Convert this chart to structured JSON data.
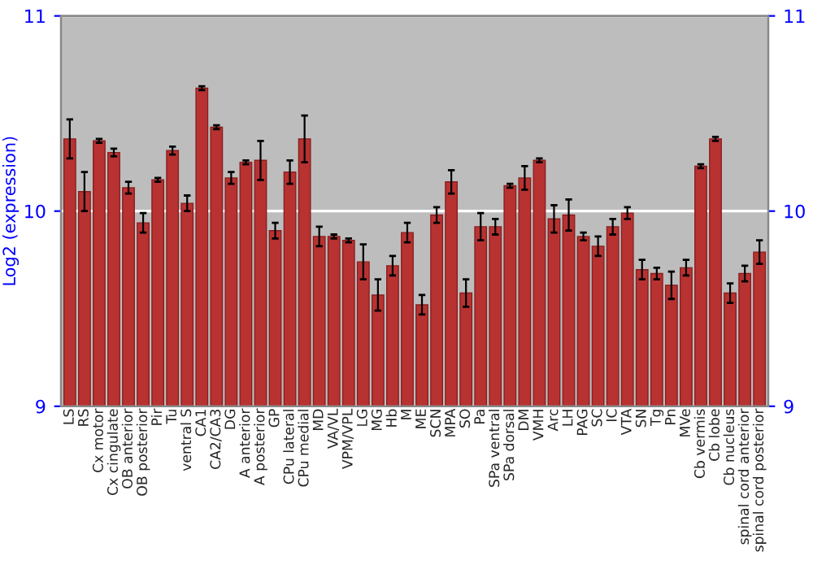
{
  "chart_data": {
    "type": "bar",
    "ylabel": "Log2 (expression)",
    "categories": [
      "LS",
      "RS",
      "Cx motor",
      "Cx cingulate",
      "OB anterior",
      "OB posterior",
      "Pir",
      "Tu",
      "ventral S",
      "CA1",
      "CA2/CA3",
      "DG",
      "A anterior",
      "A posterior",
      "GP",
      "CPu lateral",
      "CPu medial",
      "MD",
      "VA/VL",
      "VPM/VPL",
      "LG",
      "MG",
      "Hb",
      "M",
      "ME",
      "SCN",
      "MPA",
      "SO",
      "Pa",
      "SPa ventral",
      "SPa dorsal",
      "DM",
      "VMH",
      "Arc",
      "LH",
      "PAG",
      "SC",
      "IC",
      "VTA",
      "SN",
      "Tg",
      "Pn",
      "MVe",
      "Cb vermis",
      "Cb lobe",
      "Cb nucleus",
      "spinal cord anterior",
      "spinal cord posterior"
    ],
    "values": [
      10.37,
      10.1,
      10.36,
      10.3,
      10.12,
      9.94,
      10.16,
      10.31,
      10.04,
      10.63,
      10.43,
      10.17,
      10.25,
      10.26,
      9.9,
      10.2,
      10.37,
      9.87,
      9.87,
      9.85,
      9.74,
      9.57,
      9.72,
      9.89,
      9.52,
      9.98,
      10.15,
      9.58,
      9.92,
      9.92,
      10.13,
      10.17,
      10.26,
      9.96,
      9.98,
      9.87,
      9.82,
      9.92,
      9.99,
      9.7,
      9.68,
      9.62,
      9.71,
      10.23,
      10.37,
      9.58,
      9.68,
      9.79
    ],
    "errors": [
      0.1,
      0.1,
      0.01,
      0.02,
      0.03,
      0.05,
      0.01,
      0.02,
      0.04,
      0.01,
      0.01,
      0.03,
      0.01,
      0.1,
      0.04,
      0.06,
      0.12,
      0.05,
      0.01,
      0.01,
      0.09,
      0.08,
      0.05,
      0.05,
      0.05,
      0.04,
      0.06,
      0.07,
      0.07,
      0.04,
      0.01,
      0.06,
      0.01,
      0.07,
      0.08,
      0.02,
      0.05,
      0.04,
      0.03,
      0.05,
      0.03,
      0.07,
      0.04,
      0.01,
      0.01,
      0.05,
      0.04,
      0.06
    ],
    "color": "#b83232",
    "ylim": [
      9,
      11
    ],
    "yticks": [
      9,
      10,
      11
    ],
    "y2lim": [
      9,
      11
    ],
    "y2ticks": [
      9,
      10,
      11
    ],
    "grid": "y"
  }
}
